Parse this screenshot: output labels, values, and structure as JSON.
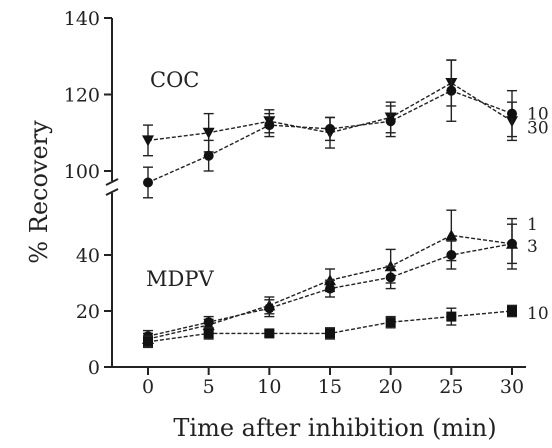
{
  "chart_data": {
    "type": "line",
    "title": "",
    "xlabel": "Time after inhibition (min)",
    "ylabel": "% Recovery",
    "x_ticks": [
      "0",
      "5",
      "10",
      "15",
      "20",
      "25",
      "30"
    ],
    "y_ticks": [
      "0",
      "20",
      "40",
      "100",
      "120",
      "140"
    ],
    "y_break": "between 50 and 90",
    "groups": [
      {
        "label": "COC",
        "series": [
          {
            "name": "10",
            "x": [
              0,
              5,
              10,
              15,
              20,
              25,
              30
            ],
            "y": [
              108,
              110,
              113,
              110,
              114,
              123,
              113
            ],
            "err": [
              4,
              5,
              3,
              4,
              4,
              6,
              5
            ],
            "marker": "triangle-down"
          },
          {
            "name": "30",
            "x": [
              0,
              5,
              10,
              15,
              20,
              25,
              30
            ],
            "y": [
              97,
              104,
              112,
              111,
              113,
              121,
              115
            ],
            "err": [
              4,
              4,
              3,
              3,
              4,
              8,
              6
            ],
            "marker": "circle"
          }
        ]
      },
      {
        "label": "MDPV",
        "series": [
          {
            "name": "1",
            "x": [
              0,
              5,
              10,
              15,
              20,
              25,
              30
            ],
            "y": [
              10,
              15,
              22,
              31,
              36,
              47,
              44
            ],
            "err": [
              2,
              2,
              3,
              4,
              6,
              9,
              9
            ],
            "marker": "triangle-up"
          },
          {
            "name": "3",
            "x": [
              0,
              5,
              10,
              15,
              20,
              25,
              30
            ],
            "y": [
              11,
              16,
              21,
              28,
              32,
              40,
              44
            ],
            "err": [
              2,
              2,
              3,
              3,
              4,
              5,
              7
            ],
            "marker": "circle"
          },
          {
            "name": "10",
            "x": [
              0,
              5,
              10,
              15,
              20,
              25,
              30
            ],
            "y": [
              9,
              12,
              12,
              12,
              16,
              18,
              20
            ],
            "err": [
              2,
              2,
              1,
              2,
              2,
              3,
              2
            ],
            "marker": "square"
          }
        ]
      }
    ],
    "grid": false,
    "legend": "labels at line ends"
  }
}
